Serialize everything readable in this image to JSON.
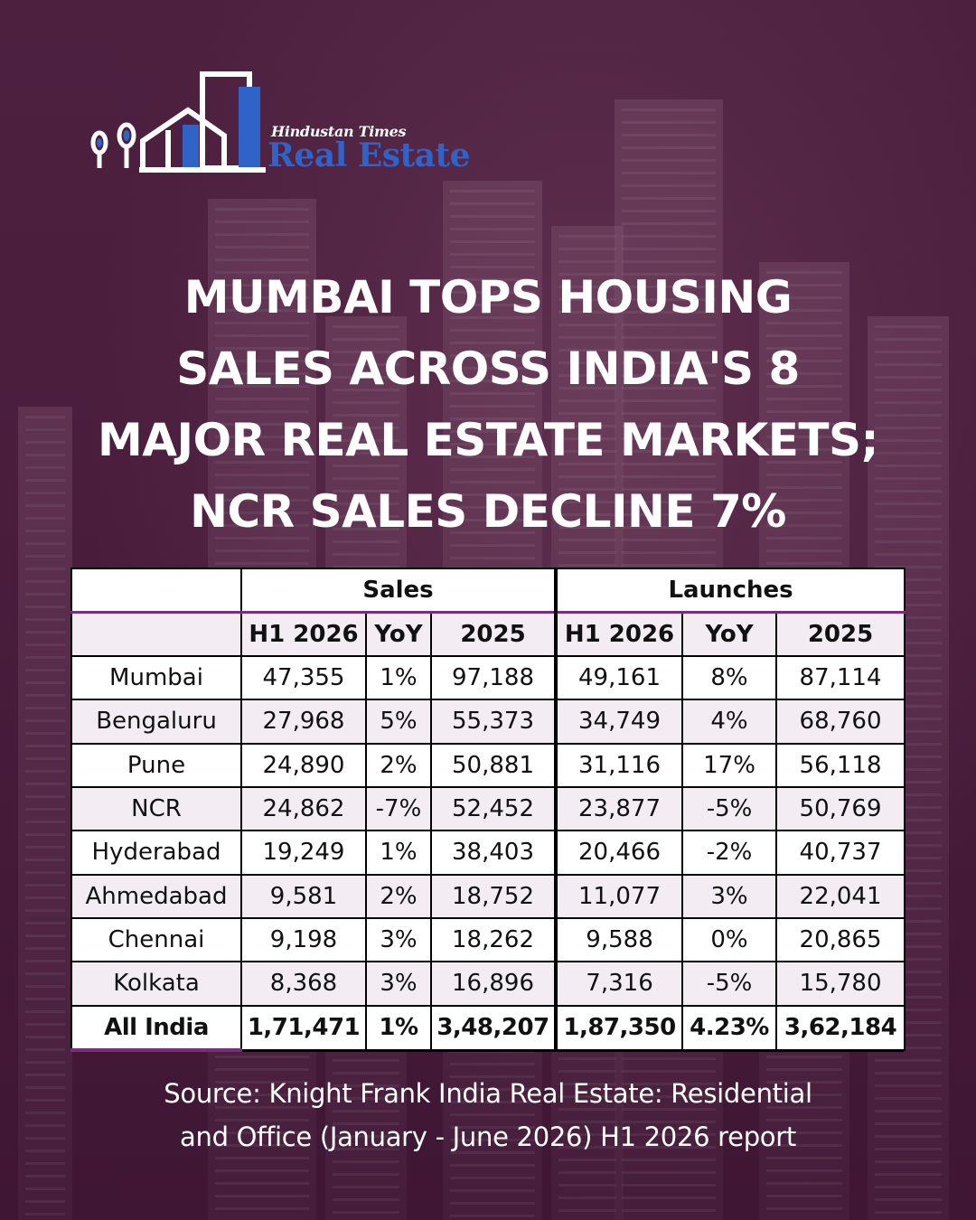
{
  "brand": {
    "top_line": "Hindustan Times",
    "name": "Real Estate",
    "colors": {
      "accent": "#2f63c8",
      "background": "#4a1f3e",
      "table_rule": "#7a2d7a"
    }
  },
  "headline": {
    "line1": "MUMBAI TOPS HOUSING",
    "line2": "SALES ACROSS INDIA'S 8",
    "line3": "MAJOR REAL ESTATE MARKETS;",
    "line4": "NCR SALES DECLINE 7%"
  },
  "table": {
    "groups": [
      "Sales",
      "Launches"
    ],
    "sub_headers": [
      "H1 2026",
      "YoY",
      "2025",
      "H1 2026",
      "YoY",
      "2025"
    ],
    "rows": [
      [
        "Mumbai",
        "47,355",
        "1%",
        "97,188",
        "49,161",
        "8%",
        "87,114"
      ],
      [
        "Bengaluru",
        "27,968",
        "5%",
        "55,373",
        "34,749",
        "4%",
        "68,760"
      ],
      [
        "Pune",
        "24,890",
        "2%",
        "50,881",
        "31,116",
        "17%",
        "56,118"
      ],
      [
        "NCR",
        "24,862",
        "-7%",
        "52,452",
        "23,877",
        "-5%",
        "50,769"
      ],
      [
        "Hyderabad",
        "19,249",
        "1%",
        "38,403",
        "20,466",
        "-2%",
        "40,737"
      ],
      [
        "Ahmedabad",
        "9,581",
        "2%",
        "18,752",
        "11,077",
        "3%",
        "22,041"
      ],
      [
        "Chennai",
        "9,198",
        "3%",
        "18,262",
        "9,588",
        "0%",
        "20,865"
      ],
      [
        "Kolkata",
        "8,368",
        "3%",
        "16,896",
        "7,316",
        "-5%",
        "15,780"
      ]
    ],
    "total": [
      "All India",
      "1,71,471",
      "1%",
      "3,48,207",
      "1,87,350",
      "4.23%",
      "3,62,184"
    ]
  },
  "source": {
    "line1": "Source: Knight Frank India Real Estate: Residential",
    "line2": "and Office (January - June 2026) H1 2026 report"
  }
}
